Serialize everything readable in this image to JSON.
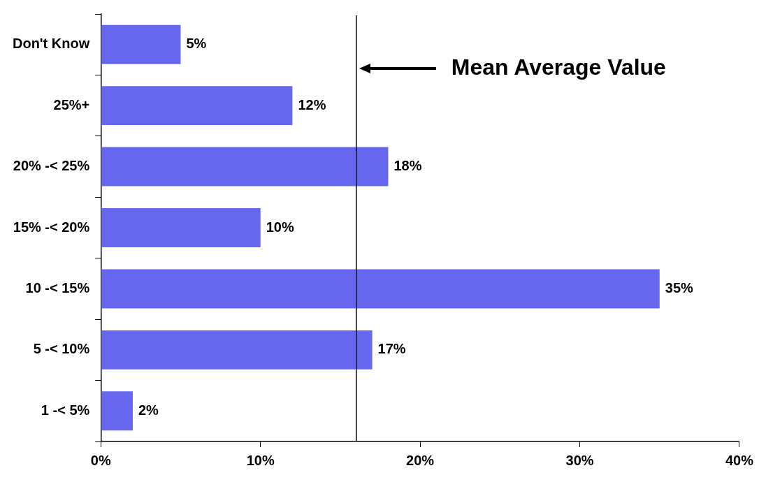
{
  "chart_data": {
    "type": "bar",
    "orientation": "horizontal",
    "categories": [
      "Don't Know",
      "25%+",
      "20% -< 25%",
      "15% -< 20%",
      "10 -< 15%",
      "5 -< 10%",
      "1 -< 5%"
    ],
    "values": [
      5,
      12,
      18,
      10,
      35,
      17,
      2
    ],
    "value_labels": [
      "5%",
      "12%",
      "18%",
      "10%",
      "35%",
      "17%",
      "2%"
    ],
    "color": "#6666ee",
    "xlim": [
      0,
      40
    ],
    "xticks": [
      {
        "value": 0,
        "label": "0%"
      },
      {
        "value": 10,
        "label": "10%"
      },
      {
        "value": 20,
        "label": "20%"
      },
      {
        "value": 30,
        "label": "30%"
      },
      {
        "value": 40,
        "label": "40%"
      }
    ],
    "ref_lines": [
      {
        "axis": "x",
        "value": 16,
        "label": "Mean Average Value",
        "color": "#000000"
      }
    ],
    "grid": false,
    "legend": false
  }
}
